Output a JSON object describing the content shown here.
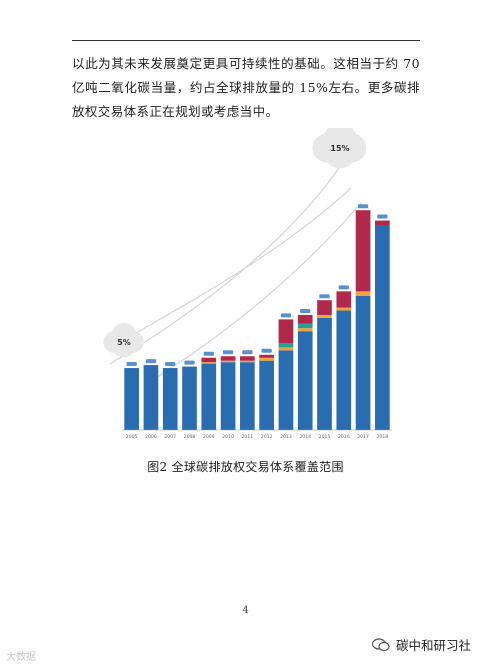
{
  "document": {
    "paragraph": "以此为其未来发展奠定更具可持续性的基础。这相当于约 70 亿吨二氧化碳当量，约占全球排放量的 15%左右。更多碳排放权交易体系正在规划或考虑当中。",
    "caption": "图2  全球碳排放权交易体系覆盖范围",
    "page_number": "4"
  },
  "watermarks": {
    "left": "大数据",
    "right": "碳中和研习社"
  },
  "chart_data": {
    "type": "bar",
    "categories": [
      "2005",
      "2006",
      "2007",
      "2008",
      "2009",
      "2010",
      "2011",
      "2012",
      "2013",
      "2014",
      "2015",
      "2016",
      "2017",
      "2018"
    ],
    "ylim": [
      0,
      16
    ],
    "series": [
      {
        "name": "",
        "color": "#2a6cb0",
        "values": [
          4.2,
          4.4,
          4.2,
          4.3,
          4.5,
          4.6,
          4.6,
          4.7,
          5.4,
          6.7,
          7.6,
          8.1,
          9.1,
          13.9
        ]
      },
      {
        "name": "",
        "color": "#f0a33a",
        "values": [
          0,
          0,
          0,
          0,
          0.1,
          0.1,
          0.1,
          0.2,
          0.2,
          0.2,
          0.2,
          0.2,
          0.3,
          0
        ]
      },
      {
        "name": "",
        "color": "#2aa198",
        "values": [
          0,
          0,
          0,
          0,
          0,
          0,
          0,
          0,
          0.3,
          0.3,
          0,
          0,
          0,
          0
        ]
      },
      {
        "name": "",
        "color": "#b0294a",
        "values": [
          0,
          0,
          0,
          0,
          0.3,
          0.3,
          0.3,
          0.2,
          1.6,
          0.6,
          1.0,
          1.1,
          5.5,
          0.3
        ]
      }
    ],
    "bar_labels": [
      "",
      "",
      "",
      "",
      "",
      "",
      "",
      "",
      "",
      "",
      "",
      "",
      "",
      ""
    ],
    "annotations": {
      "start_bubble_pct": "5%",
      "end_bubble_pct": "15%"
    },
    "colors": {
      "main": "#2a6cb0",
      "accent": "#b0294a",
      "curve": "#d6d6d6"
    }
  }
}
